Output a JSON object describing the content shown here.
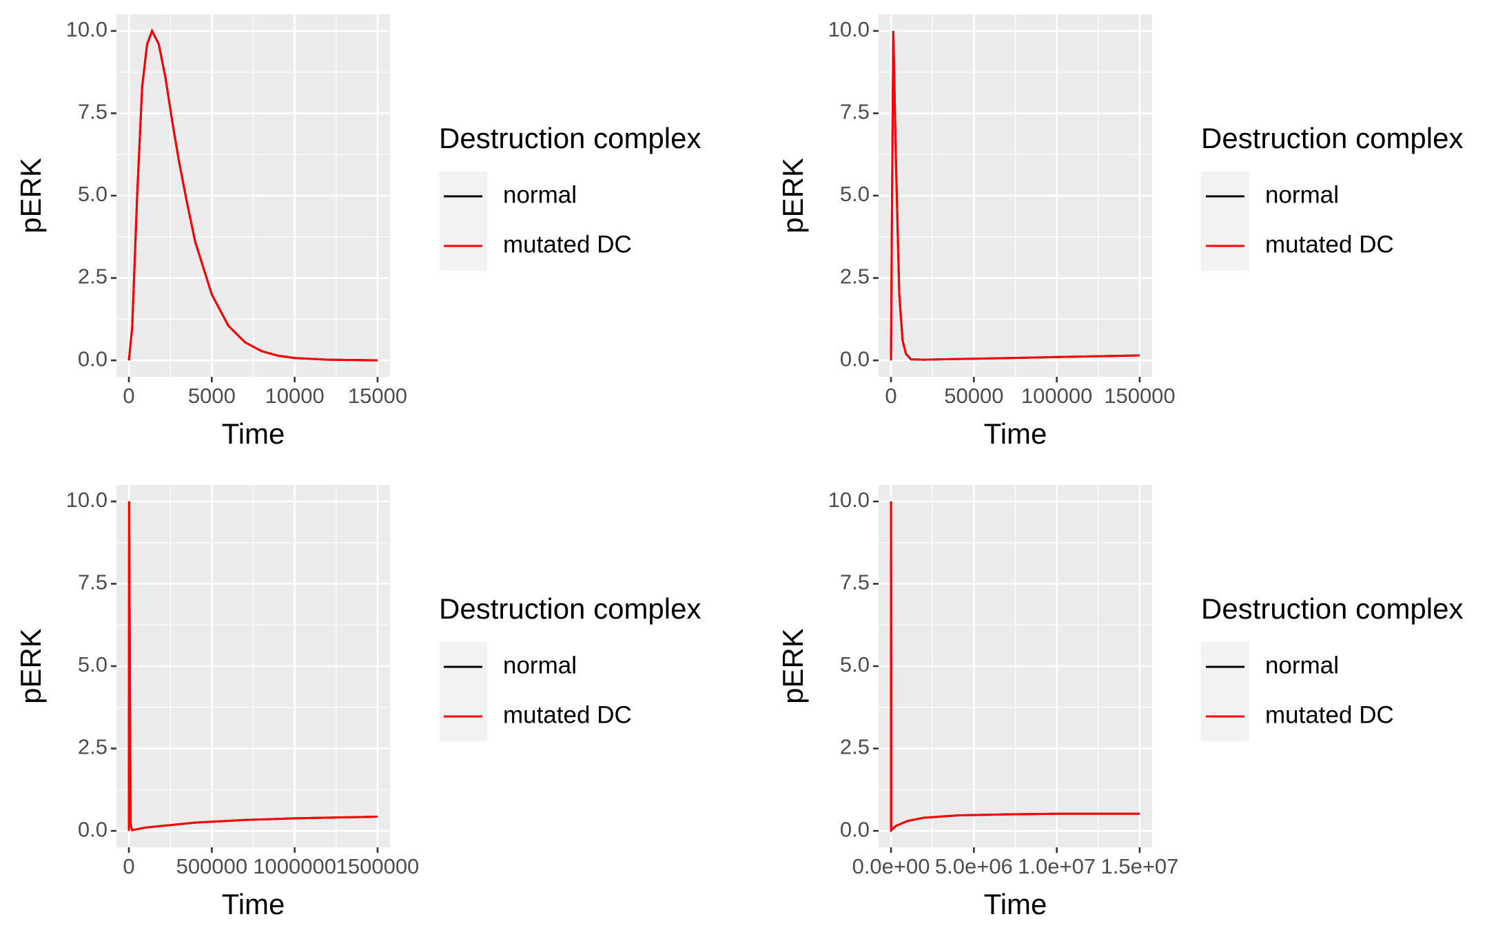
{
  "chart_data": [
    {
      "type": "line",
      "x_label": "Time",
      "y_label": "pERK",
      "legend_title": "Destruction complex",
      "grid": true,
      "minor_grid": true,
      "legend_position": "right",
      "x": [
        0,
        200,
        500,
        800,
        1100,
        1400,
        1800,
        2200,
        2600,
        3000,
        3500,
        4000,
        5000,
        6000,
        7000,
        8000,
        9000,
        10000,
        12000,
        15000
      ],
      "series": [
        {
          "name": "normal",
          "color": "#000000",
          "values": [
            0,
            1,
            5,
            8.3,
            9.6,
            10,
            9.6,
            8.6,
            7.3,
            6.1,
            4.8,
            3.6,
            2.0,
            1.05,
            0.55,
            0.28,
            0.14,
            0.07,
            0.02,
            0
          ]
        },
        {
          "name": "mutated DC",
          "color": "#ff0000",
          "values": [
            0,
            1,
            5,
            8.3,
            9.6,
            10,
            9.6,
            8.6,
            7.3,
            6.1,
            4.8,
            3.6,
            2.0,
            1.05,
            0.55,
            0.28,
            0.14,
            0.07,
            0.02,
            0
          ]
        }
      ],
      "xlim": [
        -750,
        15750
      ],
      "xticks": [
        0,
        5000,
        10000,
        15000
      ],
      "ylim": [
        -0.5,
        10.5
      ],
      "yticks": [
        {
          "value": 0,
          "label": "0.0"
        },
        2.5,
        {
          "value": 5,
          "label": "5.0"
        },
        7.5,
        {
          "value": 10,
          "label": "10.0"
        }
      ]
    },
    {
      "type": "line",
      "x_label": "Time",
      "y_label": "pERK",
      "legend_title": "Destruction complex",
      "grid": true,
      "minor_grid": true,
      "legend_position": "right",
      "x": [
        0,
        500,
        1400,
        3000,
        5000,
        7000,
        9000,
        12000,
        20000,
        50000,
        100000,
        150000
      ],
      "series": [
        {
          "name": "normal",
          "color": "#000000",
          "values": [
            0,
            4,
            10,
            6,
            2,
            0.6,
            0.2,
            0.03,
            0.02,
            0.05,
            0.1,
            0.15
          ]
        },
        {
          "name": "mutated DC",
          "color": "#ff0000",
          "values": [
            0,
            4,
            10,
            6,
            2,
            0.6,
            0.2,
            0.03,
            0.02,
            0.05,
            0.1,
            0.15
          ]
        }
      ],
      "xlim": [
        -7500,
        157500
      ],
      "xticks": [
        0,
        50000,
        100000,
        150000
      ],
      "ylim": [
        -0.5,
        10.5
      ],
      "yticks": [
        {
          "value": 0,
          "label": "0.0"
        },
        2.5,
        {
          "value": 5,
          "label": "5.0"
        },
        7.5,
        {
          "value": 10,
          "label": "10.0"
        }
      ]
    },
    {
      "type": "line",
      "x_label": "Time",
      "y_label": "pERK",
      "legend_title": "Destruction complex",
      "grid": true,
      "minor_grid": true,
      "legend_position": "right",
      "x": [
        0,
        1400,
        10000,
        20000,
        50000,
        100000,
        200000,
        400000,
        700000,
        1000000,
        1500000
      ],
      "series": [
        {
          "name": "normal",
          "color": "#000000",
          "values": [
            0,
            10,
            0.2,
            0.02,
            0.05,
            0.1,
            0.15,
            0.25,
            0.33,
            0.38,
            0.43
          ]
        },
        {
          "name": "mutated DC",
          "color": "#ff0000",
          "values": [
            0,
            10,
            0.2,
            0.02,
            0.05,
            0.1,
            0.15,
            0.25,
            0.33,
            0.38,
            0.43
          ]
        }
      ],
      "xlim": [
        -75000,
        1575000
      ],
      "xticks": [
        0,
        500000,
        1000000,
        1500000
      ],
      "ylim": [
        -0.5,
        10.5
      ],
      "yticks": [
        {
          "value": 0,
          "label": "0.0"
        },
        2.5,
        {
          "value": 5,
          "label": "5.0"
        },
        7.5,
        {
          "value": 10,
          "label": "10.0"
        }
      ]
    },
    {
      "type": "line",
      "x_label": "Time",
      "y_label": "pERK",
      "legend_title": "Destruction complex",
      "grid": true,
      "minor_grid": true,
      "legend_position": "right",
      "x": [
        0,
        1400,
        20000,
        300000,
        1000000,
        2000000,
        4000000,
        7000000,
        10000000,
        15000000
      ],
      "series": [
        {
          "name": "normal",
          "color": "#000000",
          "values": [
            0,
            10,
            0.02,
            0.15,
            0.3,
            0.4,
            0.47,
            0.5,
            0.52,
            0.52
          ]
        },
        {
          "name": "mutated DC",
          "color": "#ff0000",
          "values": [
            0,
            10,
            0.02,
            0.15,
            0.3,
            0.4,
            0.47,
            0.5,
            0.52,
            0.52
          ]
        }
      ],
      "xlim": [
        -750000,
        15750000
      ],
      "xticks": [
        {
          "value": 0,
          "label": "0.0e+00"
        },
        {
          "value": 5000000,
          "label": "5.0e+06"
        },
        {
          "value": 10000000,
          "label": "1.0e+07"
        },
        {
          "value": 15000000,
          "label": "1.5e+07"
        }
      ],
      "ylim": [
        -0.5,
        10.5
      ],
      "yticks": [
        {
          "value": 0,
          "label": "0.0"
        },
        2.5,
        {
          "value": 5,
          "label": "5.0"
        },
        7.5,
        {
          "value": 10,
          "label": "10.0"
        }
      ]
    }
  ]
}
